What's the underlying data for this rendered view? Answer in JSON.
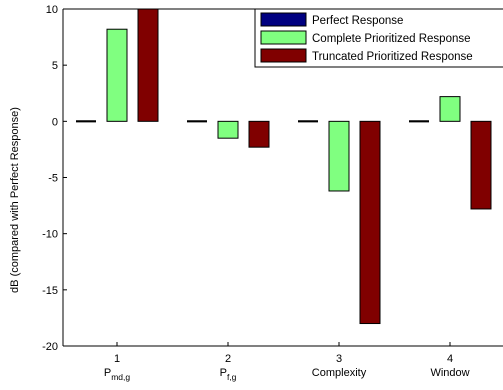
{
  "chart_data": {
    "type": "bar",
    "title": "",
    "xlabel": "",
    "ylabel": "dB (compared with Perfect Response)",
    "ylim": [
      -20,
      10
    ],
    "yticks": [
      10,
      5,
      0,
      -5,
      -10,
      -15,
      -20
    ],
    "categories": [
      {
        "number": "1",
        "name": "P",
        "sub": "md,g"
      },
      {
        "number": "2",
        "name": "P",
        "sub": "f,g"
      },
      {
        "number": "3",
        "name": "Complexity",
        "sub": ""
      },
      {
        "number": "4",
        "name": "Window",
        "sub": ""
      }
    ],
    "series": [
      {
        "name": "Perfect Response",
        "color": "#000080",
        "values": [
          0,
          0,
          0,
          0
        ]
      },
      {
        "name": "Complete Prioritized Response",
        "color": "#80ff80",
        "values": [
          8.2,
          -1.5,
          -6.2,
          2.2
        ]
      },
      {
        "name": "Truncated Prioritized Response",
        "color": "#800000",
        "values": [
          10.3,
          -2.3,
          -18,
          -7.8
        ]
      }
    ],
    "legend_position": "top-right",
    "grid": false
  }
}
